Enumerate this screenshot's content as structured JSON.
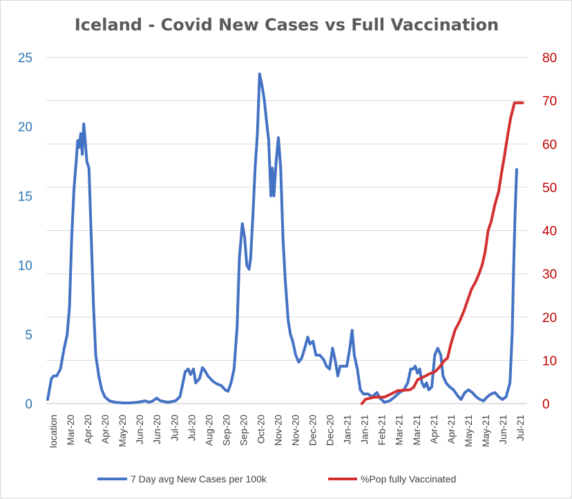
{
  "chart_data": {
    "type": "line",
    "title": "Iceland - Covid New Cases vs Full Vaccination",
    "colors": {
      "cases": "#4472c4",
      "vaccinated": "#d32f2f",
      "left_axis": "#2e75b6",
      "right_axis": "#c00000",
      "grid": "#d9d9d9"
    },
    "x_tick_labels": [
      "location",
      "Mar-20",
      "Apr-20",
      "Apr-20",
      "May-20",
      "Jun-20",
      "Jun-20",
      "Jul-20",
      "Jul-20",
      "Aug-20",
      "Sep-20",
      "Sep-20",
      "Oct-20",
      "Nov-20",
      "Nov-20",
      "Dec-20",
      "Dec-20",
      "Jan-21",
      "Jan-21",
      "Feb-21",
      "Mar-21",
      "Mar-21",
      "Apr-21",
      "Apr-21",
      "May-21",
      "May-21",
      "Jun-21",
      "Jul-21"
    ],
    "y_left": {
      "range": [
        0,
        25
      ],
      "ticks": [
        "0",
        "5",
        "10",
        "15",
        "20",
        "25"
      ]
    },
    "y_right": {
      "range": [
        0,
        80
      ],
      "ticks": [
        "0",
        "10",
        "20",
        "30",
        "40",
        "50",
        "60",
        "70",
        "80"
      ]
    },
    "series": [
      {
        "name": "7 Day avg New Cases per 100k",
        "axis": "left",
        "points": [
          [
            0,
            0.3
          ],
          [
            0.5,
            1.8
          ],
          [
            0.8,
            2.0
          ],
          [
            1.2,
            2.0
          ],
          [
            1.7,
            2.5
          ],
          [
            2.2,
            4.0
          ],
          [
            2.6,
            5.0
          ],
          [
            2.9,
            7.0
          ],
          [
            3.2,
            12.0
          ],
          [
            3.5,
            15.5
          ],
          [
            3.8,
            17.5
          ],
          [
            4.0,
            19.0
          ],
          [
            4.2,
            18.5
          ],
          [
            4.4,
            19.5
          ],
          [
            4.6,
            18.0
          ],
          [
            4.8,
            20.2
          ],
          [
            5.0,
            19.0
          ],
          [
            5.2,
            17.5
          ],
          [
            5.5,
            17.0
          ],
          [
            5.8,
            12.0
          ],
          [
            6.1,
            7.0
          ],
          [
            6.4,
            3.5
          ],
          [
            6.8,
            2.0
          ],
          [
            7.2,
            1.0
          ],
          [
            7.6,
            0.5
          ],
          [
            8.2,
            0.2
          ],
          [
            9,
            0.1
          ],
          [
            10,
            0.05
          ],
          [
            11,
            0.05
          ],
          [
            12,
            0.1
          ],
          [
            13,
            0.2
          ],
          [
            13.5,
            0.1
          ],
          [
            14,
            0.2
          ],
          [
            14.5,
            0.4
          ],
          [
            15,
            0.2
          ],
          [
            16,
            0.1
          ],
          [
            17,
            0.2
          ],
          [
            17.6,
            0.5
          ],
          [
            18,
            1.5
          ],
          [
            18.3,
            2.3
          ],
          [
            18.7,
            2.5
          ],
          [
            19,
            2.1
          ],
          [
            19.4,
            2.5
          ],
          [
            19.7,
            1.5
          ],
          [
            20.2,
            1.8
          ],
          [
            20.6,
            2.6
          ],
          [
            20.9,
            2.4
          ],
          [
            21.3,
            2.0
          ],
          [
            22,
            1.6
          ],
          [
            22.6,
            1.4
          ],
          [
            23.1,
            1.3
          ],
          [
            23.6,
            1.0
          ],
          [
            24,
            0.9
          ],
          [
            24.4,
            1.5
          ],
          [
            24.8,
            2.5
          ],
          [
            25.2,
            5.5
          ],
          [
            25.5,
            10.5
          ],
          [
            25.9,
            13.0
          ],
          [
            26.2,
            12.0
          ],
          [
            26.5,
            10.0
          ],
          [
            26.8,
            9.7
          ],
          [
            27.0,
            10.5
          ],
          [
            27.3,
            13.5
          ],
          [
            27.6,
            17.0
          ],
          [
            27.9,
            19.5
          ],
          [
            28.2,
            23.8
          ],
          [
            28.5,
            23.0
          ],
          [
            28.8,
            22.0
          ],
          [
            29.1,
            20.5
          ],
          [
            29.4,
            19.0
          ],
          [
            29.7,
            15.0
          ],
          [
            29.9,
            17.0
          ],
          [
            30.1,
            15.0
          ],
          [
            30.4,
            17.5
          ],
          [
            30.7,
            19.2
          ],
          [
            31.0,
            17.0
          ],
          [
            31.3,
            12.0
          ],
          [
            31.6,
            9.0
          ],
          [
            32,
            6.0
          ],
          [
            32.3,
            5.0
          ],
          [
            32.6,
            4.5
          ],
          [
            33,
            3.5
          ],
          [
            33.4,
            3.0
          ],
          [
            33.8,
            3.3
          ],
          [
            34.2,
            4.0
          ],
          [
            34.6,
            4.8
          ],
          [
            34.9,
            4.3
          ],
          [
            35.3,
            4.5
          ],
          [
            35.7,
            3.5
          ],
          [
            36.2,
            3.5
          ],
          [
            36.7,
            3.2
          ],
          [
            37.1,
            2.7
          ],
          [
            37.5,
            2.5
          ],
          [
            37.9,
            4.0
          ],
          [
            38.3,
            3.0
          ],
          [
            38.6,
            2.0
          ],
          [
            38.9,
            2.7
          ],
          [
            39.4,
            2.7
          ],
          [
            39.8,
            2.7
          ],
          [
            40.2,
            4.0
          ],
          [
            40.5,
            5.3
          ],
          [
            40.8,
            3.5
          ],
          [
            41.2,
            2.5
          ],
          [
            41.6,
            1.0
          ],
          [
            42,
            0.7
          ],
          [
            42.6,
            0.7
          ],
          [
            43.2,
            0.5
          ],
          [
            43.8,
            0.8
          ],
          [
            44.2,
            0.4
          ],
          [
            44.8,
            0.1
          ],
          [
            45.5,
            0.2
          ],
          [
            46.2,
            0.5
          ],
          [
            46.8,
            0.8
          ],
          [
            47.4,
            1.0
          ],
          [
            47.9,
            1.5
          ],
          [
            48.3,
            2.5
          ],
          [
            48.6,
            2.5
          ],
          [
            48.9,
            2.7
          ],
          [
            49.2,
            2.2
          ],
          [
            49.5,
            2.5
          ],
          [
            49.8,
            1.5
          ],
          [
            50.1,
            1.2
          ],
          [
            50.4,
            1.5
          ],
          [
            50.7,
            1.0
          ],
          [
            51.1,
            1.2
          ],
          [
            51.5,
            3.5
          ],
          [
            51.9,
            4.0
          ],
          [
            52.3,
            3.5
          ],
          [
            52.6,
            2.0
          ],
          [
            53,
            1.5
          ],
          [
            53.5,
            1.2
          ],
          [
            54,
            1.0
          ],
          [
            54.5,
            0.6
          ],
          [
            55,
            0.3
          ],
          [
            55.5,
            0.8
          ],
          [
            56,
            1.0
          ],
          [
            56.5,
            0.8
          ],
          [
            57,
            0.5
          ],
          [
            57.5,
            0.3
          ],
          [
            58,
            0.2
          ],
          [
            58.5,
            0.5
          ],
          [
            59,
            0.7
          ],
          [
            59.5,
            0.8
          ],
          [
            60,
            0.5
          ],
          [
            60.5,
            0.3
          ],
          [
            61,
            0.5
          ],
          [
            61.5,
            1.5
          ],
          [
            61.8,
            5.0
          ],
          [
            62.0,
            10.0
          ],
          [
            62.2,
            14.0
          ],
          [
            62.4,
            16.9
          ]
        ]
      },
      {
        "name": "%Pop fully Vaccinated",
        "axis": "right",
        "points": [
          [
            41.8,
            0
          ],
          [
            42.3,
            1.0
          ],
          [
            43.5,
            1.5
          ],
          [
            44.8,
            1.5
          ],
          [
            45.4,
            2.0
          ],
          [
            46,
            2.5
          ],
          [
            46.6,
            3.0
          ],
          [
            48.2,
            3.2
          ],
          [
            48.7,
            3.8
          ],
          [
            49.2,
            5.5
          ],
          [
            49.8,
            6.0
          ],
          [
            50.4,
            6.5
          ],
          [
            50.9,
            7.0
          ],
          [
            51.4,
            7.2
          ],
          [
            51.9,
            8.0
          ],
          [
            52.4,
            9.0
          ],
          [
            52.8,
            10.0
          ],
          [
            53.2,
            10.5
          ],
          [
            53.6,
            13.5
          ],
          [
            54.2,
            17.0
          ],
          [
            54.8,
            19.0
          ],
          [
            55.4,
            21.5
          ],
          [
            55.9,
            24.0
          ],
          [
            56.4,
            26.5
          ],
          [
            56.9,
            28.0
          ],
          [
            57.4,
            30.0
          ],
          [
            57.8,
            32.0
          ],
          [
            58.2,
            35.0
          ],
          [
            58.6,
            40.0
          ],
          [
            59,
            42.0
          ],
          [
            59.5,
            46.0
          ],
          [
            60,
            49.0
          ],
          [
            60.4,
            53.5
          ],
          [
            60.8,
            57.5
          ],
          [
            61.2,
            62.0
          ],
          [
            61.6,
            66.0
          ],
          [
            62.1,
            69.5
          ],
          [
            63.2,
            69.5
          ]
        ]
      }
    ],
    "legend": [
      {
        "label": "7 Day avg New Cases per 100k",
        "color": "#4472c4"
      },
      {
        "label": "%Pop fully Vaccinated",
        "color": "#d32f2f"
      }
    ],
    "legend_position": "bottom",
    "grid": true
  }
}
